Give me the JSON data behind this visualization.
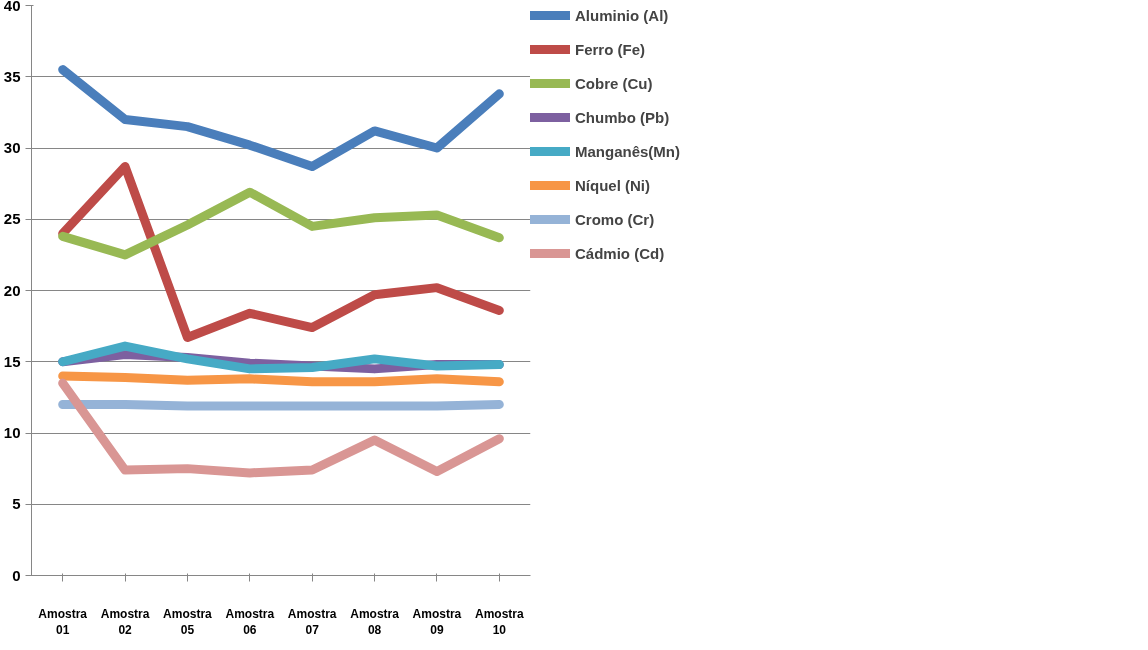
{
  "chart_data": {
    "type": "line",
    "categories": [
      "Amostra\n01",
      "Amostra\n02",
      "Amostra\n05",
      "Amostra\n06",
      "Amostra\n07",
      "Amostra\n08",
      "Amostra\n09",
      "Amostra\n10"
    ],
    "series": [
      {
        "name": "Aluminio (Al)",
        "color": "#4a7ebb",
        "values": [
          35.5,
          32,
          31.5,
          30.2,
          28.7,
          31.2,
          30,
          33.8
        ]
      },
      {
        "name": "Ferro (Fe)",
        "color": "#be4b48",
        "values": [
          24,
          28.7,
          16.7,
          18.4,
          17.4,
          19.7,
          20.2,
          18.6
        ]
      },
      {
        "name": "Cobre (Cu)",
        "color": "#98b954",
        "values": [
          23.8,
          22.5,
          24.6,
          26.9,
          24.5,
          25.1,
          25.3,
          23.7
        ]
      },
      {
        "name": "Chumbo (Pb)",
        "color": "#7d60a0",
        "values": [
          15,
          15.5,
          15.3,
          14.9,
          14.7,
          14.5,
          14.8,
          14.8
        ]
      },
      {
        "name": "Manganês(Mn)",
        "color": "#46aac5",
        "values": [
          15,
          16.1,
          15.2,
          14.5,
          14.6,
          15.2,
          14.7,
          14.8
        ]
      },
      {
        "name": "Níquel (Ni)",
        "color": "#f79646",
        "values": [
          14,
          13.9,
          13.7,
          13.8,
          13.6,
          13.6,
          13.8,
          13.6
        ]
      },
      {
        "name": "Cromo (Cr)",
        "color": "#95b3d7",
        "values": [
          12,
          12,
          11.9,
          11.9,
          11.9,
          11.9,
          11.9,
          12
        ]
      },
      {
        "name": "Cádmio (Cd)",
        "color": "#d99694",
        "values": [
          13.5,
          7.4,
          7.5,
          7.2,
          7.4,
          9.5,
          7.3,
          9.6
        ]
      }
    ],
    "ylim": [
      0,
      40
    ],
    "yticks": [
      0,
      5,
      10,
      15,
      20,
      25,
      30,
      35,
      40
    ],
    "grid": "y",
    "legend": "right",
    "marker": "none",
    "line_style": "solid"
  }
}
